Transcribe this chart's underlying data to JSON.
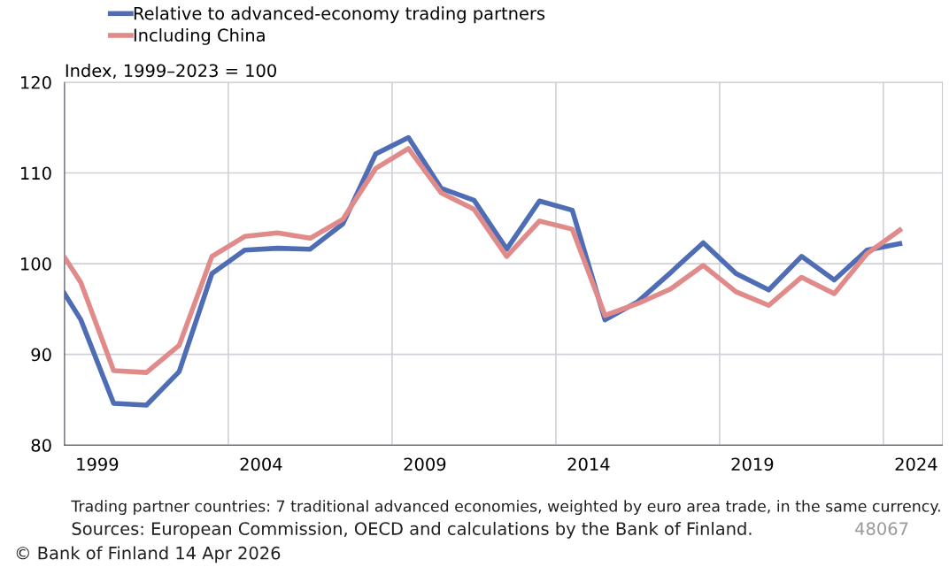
{
  "chart_data": {
    "type": "line",
    "ylabel": "Index, 1999–2023 = 100",
    "x": [
      1998.0,
      1998.5,
      1999.5,
      2000.5,
      2001.5,
      2002.5,
      2003.5,
      2004.5,
      2005.5,
      2006.5,
      2007.5,
      2008.5,
      2009.5,
      2010.5,
      2011.5,
      2012.5,
      2013.5,
      2014.5,
      2015.5,
      2016.5,
      2017.5,
      2018.5,
      2019.5,
      2020.5,
      2021.5,
      2022.5,
      2023.5
    ],
    "series": [
      {
        "name": "Relative to advanced-economy trading partners",
        "color": "#4f6db4",
        "values": [
          96.7,
          93.8,
          84.6,
          84.4,
          88.1,
          98.9,
          101.5,
          101.7,
          101.6,
          104.4,
          112.1,
          113.9,
          108.3,
          107.0,
          101.6,
          106.9,
          105.9,
          93.8,
          95.8,
          99.0,
          102.3,
          98.9,
          97.1,
          100.8,
          98.2,
          101.5,
          102.2
        ]
      },
      {
        "name": "Including China",
        "color": "#e08a8a",
        "values": [
          100.7,
          97.9,
          88.2,
          88.0,
          91.0,
          100.8,
          103.0,
          103.4,
          102.8,
          104.9,
          110.5,
          112.7,
          107.8,
          106.0,
          100.8,
          104.7,
          103.8,
          94.3,
          95.6,
          97.2,
          99.8,
          96.9,
          95.4,
          98.5,
          96.7,
          101.1,
          103.7
        ]
      }
    ],
    "xlim": [
      1998,
      2024.8
    ],
    "xticks": [
      1999,
      2004,
      2009,
      2014,
      2019,
      2024
    ],
    "ylim": [
      80,
      120
    ],
    "yticks": [
      80,
      90,
      100,
      110,
      120
    ],
    "ref_lines": [
      {
        "axis": "x",
        "value": 2003,
        "label": null,
        "color": "#d0d0d8"
      },
      {
        "axis": "x",
        "value": 2008,
        "label": null,
        "color": "#d0d0d8"
      },
      {
        "axis": "x",
        "value": 2013,
        "label": null,
        "color": "#d0d0d8"
      },
      {
        "axis": "x",
        "value": 2018,
        "label": null,
        "color": "#d0d0d8"
      },
      {
        "axis": "x",
        "value": 2023,
        "label": null,
        "color": "#d0d0d8"
      }
    ],
    "grid": "y",
    "legend": "top",
    "marker": "none",
    "line_style": "solid",
    "annotations": [
      "Trading partner countries: 7 traditional advanced economies, weighted by euro area trade, in the same currency.",
      "Sources: European Commission, OECD and calculations by the Bank of Finland.",
      "48067",
      "© Bank of Finland 14 Apr 2026"
    ]
  }
}
